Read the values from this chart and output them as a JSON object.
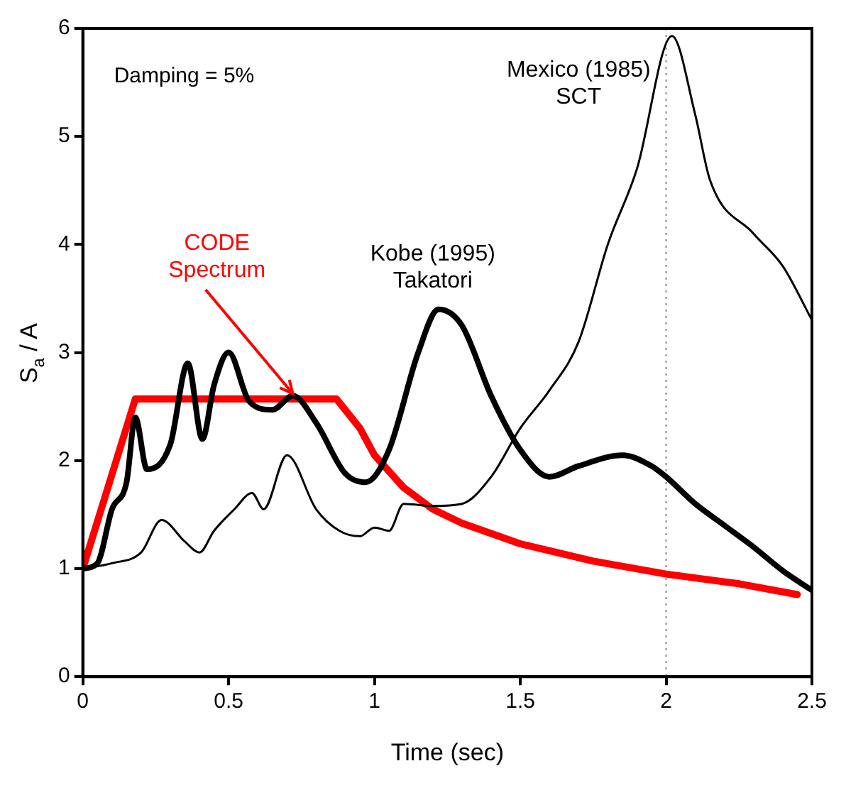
{
  "chart_data": {
    "type": "line",
    "xlabel": "Time (sec)",
    "ylabel": "S$_{a}$ / A",
    "xlim": [
      0,
      2.5
    ],
    "ylim": [
      0,
      6
    ],
    "xticks": [
      0,
      0.5,
      1,
      1.5,
      2,
      2.5
    ],
    "yticks": [
      0,
      1,
      2,
      3,
      4,
      5,
      6
    ],
    "grid": false,
    "legend": false,
    "marker": "none",
    "line_style": "solid",
    "annotations": [
      "Damping = 5%"
    ],
    "ref_lines": [
      {
        "axis": "x",
        "value": 2,
        "color": "#888888",
        "line_style": "dotted"
      }
    ],
    "series": [
      {
        "name": "CODE Spectrum",
        "color": "#ff0000",
        "x": [
          0,
          0.18,
          0.87,
          0.95,
          1.0,
          1.1,
          1.2,
          1.3,
          1.5,
          1.75,
          2.0,
          2.25,
          2.45
        ],
        "values": [
          1.0,
          2.57,
          2.57,
          2.3,
          2.05,
          1.75,
          1.55,
          1.42,
          1.23,
          1.07,
          0.95,
          0.86,
          0.76
        ]
      },
      {
        "name": "Kobe (1995) Takatori",
        "color": "#000000",
        "x": [
          0,
          0.05,
          0.1,
          0.15,
          0.18,
          0.22,
          0.3,
          0.36,
          0.41,
          0.45,
          0.5,
          0.57,
          0.65,
          0.72,
          0.8,
          0.9,
          0.97,
          1.05,
          1.15,
          1.22,
          1.3,
          1.4,
          1.5,
          1.6,
          1.7,
          1.85,
          1.95,
          2.0,
          2.1,
          2.2,
          2.3,
          2.4,
          2.5
        ],
        "values": [
          1.0,
          1.05,
          1.55,
          1.8,
          2.4,
          1.92,
          2.15,
          2.9,
          2.2,
          2.7,
          3.0,
          2.55,
          2.47,
          2.6,
          2.35,
          1.88,
          1.8,
          2.1,
          3.0,
          3.4,
          3.25,
          2.6,
          2.1,
          1.85,
          1.95,
          2.05,
          1.95,
          1.85,
          1.6,
          1.4,
          1.2,
          0.98,
          0.8
        ]
      },
      {
        "name": "Mexico (1985) SCT",
        "color": "#000000",
        "x": [
          0,
          0.1,
          0.2,
          0.27,
          0.35,
          0.4,
          0.45,
          0.52,
          0.58,
          0.62,
          0.7,
          0.8,
          0.88,
          0.95,
          1.0,
          1.05,
          1.1,
          1.2,
          1.3,
          1.4,
          1.5,
          1.6,
          1.7,
          1.8,
          1.9,
          2.02,
          2.1,
          2.15,
          2.3,
          2.4,
          2.5
        ],
        "values": [
          1.0,
          1.05,
          1.15,
          1.45,
          1.25,
          1.15,
          1.35,
          1.55,
          1.7,
          1.55,
          2.05,
          1.55,
          1.35,
          1.3,
          1.38,
          1.35,
          1.6,
          1.58,
          1.6,
          1.85,
          2.3,
          2.65,
          3.1,
          4.0,
          4.7,
          5.93,
          5.2,
          4.6,
          4.1,
          3.8,
          3.3
        ]
      }
    ]
  }
}
